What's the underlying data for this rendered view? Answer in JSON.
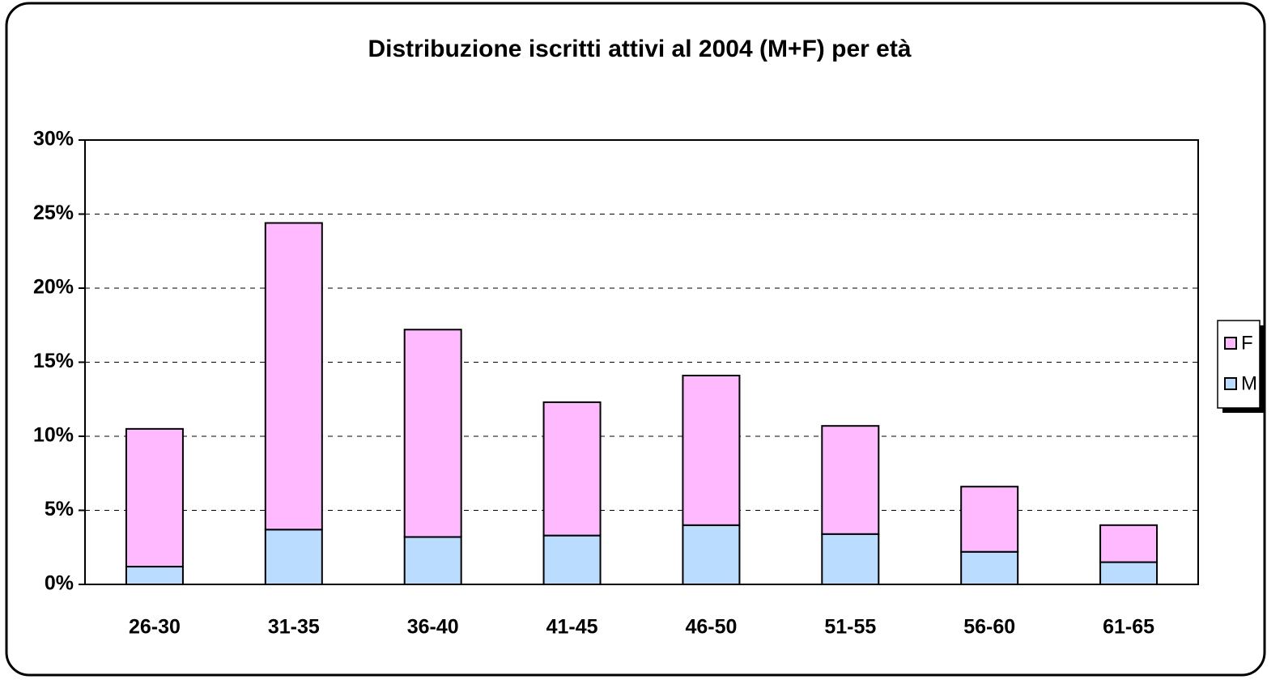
{
  "chart_data": {
    "type": "bar",
    "stacked": true,
    "title": "Distribuzione iscritti attivi al 2004 (M+F) per età",
    "categories": [
      "26-30",
      "31-35",
      "36-40",
      "41-45",
      "46-50",
      "51-55",
      "56-60",
      "61-65"
    ],
    "series": [
      {
        "name": "M",
        "color": "#b9dcff",
        "values": [
          1.2,
          3.7,
          3.2,
          3.3,
          4.0,
          3.4,
          2.2,
          1.5
        ]
      },
      {
        "name": "F",
        "color": "#ffb9ff",
        "values": [
          9.3,
          20.7,
          14.0,
          9.0,
          10.1,
          7.3,
          4.4,
          2.5
        ]
      }
    ],
    "ylim": [
      0,
      30
    ],
    "yticks": [
      {
        "value": 0,
        "label": "0%"
      },
      {
        "value": 5,
        "label": "5%"
      },
      {
        "value": 10,
        "label": "10%"
      },
      {
        "value": 15,
        "label": "15%"
      },
      {
        "value": 20,
        "label": "20%"
      },
      {
        "value": 25,
        "label": "25%"
      },
      {
        "value": 30,
        "label": "30%"
      }
    ],
    "grid": true,
    "legend": "right"
  }
}
